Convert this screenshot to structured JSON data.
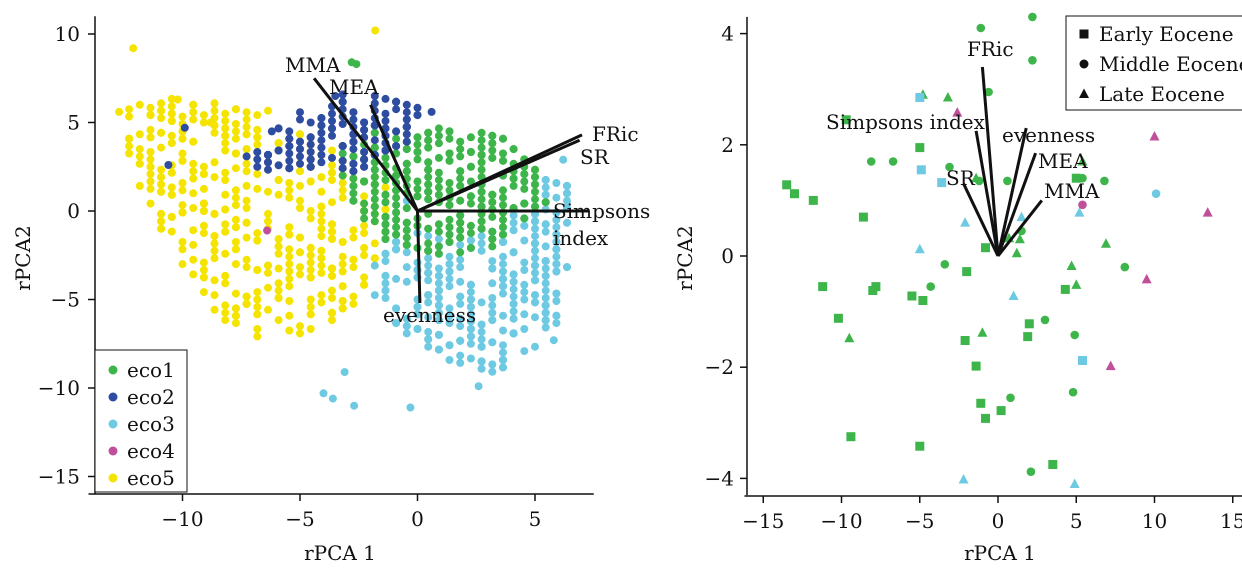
{
  "chart_data": [
    {
      "type": "scatter",
      "xlabel": "rPCA 1",
      "ylabel": "rPCA2",
      "xlim": [
        -14,
        7.5
      ],
      "ylim": [
        -16,
        11
      ],
      "xticks": [
        "−10",
        "−5",
        "0",
        "5"
      ],
      "xtick_values": [
        -10,
        -5,
        0,
        5
      ],
      "yticks": [
        "−15",
        "−10",
        "−5",
        "0",
        "5",
        "10"
      ],
      "ytick_values": [
        -15,
        -10,
        -5,
        0,
        5,
        10
      ],
      "legend_position": "bottom-left",
      "series": [
        {
          "name": "eco1",
          "color": "#3db54a",
          "marker": "circle"
        },
        {
          "name": "eco2",
          "color": "#2e4da0",
          "marker": "circle"
        },
        {
          "name": "eco3",
          "color": "#6ecae2",
          "marker": "circle"
        },
        {
          "name": "eco4",
          "color": "#c0509a",
          "marker": "circle"
        },
        {
          "name": "eco5",
          "color": "#f5e400",
          "marker": "circle"
        }
      ],
      "loadings": [
        {
          "label": "MMA",
          "x": -4.4,
          "y": 7.5
        },
        {
          "label": "MEA",
          "x": -2.0,
          "y": 6.0
        },
        {
          "label": "FRic",
          "x": 7.0,
          "y": 4.3
        },
        {
          "label": "SR",
          "x": 6.9,
          "y": 4.0
        },
        {
          "label": "Simpsons index",
          "x": 7.3,
          "y": 0.0
        },
        {
          "label": "evenness",
          "x": 0.1,
          "y": -5.2
        }
      ],
      "loading_labels": {
        "MMA": "MMA",
        "MEA": "MEA",
        "FRic": "FRic",
        "SR": "SR",
        "Simpsons index line1": "Simpsons",
        "Simpsons index line2": "index",
        "evenness": "evenness"
      }
    },
    {
      "type": "scatter",
      "xlabel": "rPCA 1",
      "ylabel": "rPCA2",
      "xlim": [
        -16.2,
        15.5
      ],
      "ylim": [
        -4.3,
        4.3
      ],
      "xticks": [
        "−15",
        "−10",
        "−5",
        "0",
        "5",
        "10",
        "15"
      ],
      "xtick_values": [
        -15,
        -10,
        -5,
        0,
        5,
        10,
        15
      ],
      "yticks": [
        "−4",
        "−2",
        "0",
        "2",
        "4"
      ],
      "ytick_values": [
        -4,
        -2,
        0,
        2,
        4
      ],
      "legend_position": "top-right",
      "legend": [
        {
          "name": "Early Eocene",
          "marker": "square"
        },
        {
          "name": "Middle Eocene",
          "marker": "circle"
        },
        {
          "name": "Late Eocene",
          "marker": "triangle"
        }
      ],
      "colors": {
        "eco1": "#3db54a",
        "eco3": "#6ecae2",
        "eco4": "#c0509a"
      },
      "points": [
        {
          "x": -13.5,
          "y": 1.28,
          "m": "square",
          "c": "eco1"
        },
        {
          "x": -13.0,
          "y": 1.12,
          "m": "square",
          "c": "eco1"
        },
        {
          "x": -11.8,
          "y": 1.0,
          "m": "square",
          "c": "eco1"
        },
        {
          "x": -9.7,
          "y": 2.45,
          "m": "square",
          "c": "eco1"
        },
        {
          "x": -8.6,
          "y": 0.7,
          "m": "square",
          "c": "eco1"
        },
        {
          "x": -11.2,
          "y": -0.55,
          "m": "square",
          "c": "eco1"
        },
        {
          "x": -10.2,
          "y": -1.12,
          "m": "square",
          "c": "eco1"
        },
        {
          "x": -8.0,
          "y": -0.62,
          "m": "square",
          "c": "eco1"
        },
        {
          "x": -7.8,
          "y": -0.55,
          "m": "square",
          "c": "eco1"
        },
        {
          "x": -5.5,
          "y": -0.72,
          "m": "square",
          "c": "eco1"
        },
        {
          "x": -4.8,
          "y": -0.8,
          "m": "square",
          "c": "eco1"
        },
        {
          "x": -9.4,
          "y": -3.25,
          "m": "square",
          "c": "eco1"
        },
        {
          "x": -5.0,
          "y": -3.42,
          "m": "square",
          "c": "eco1"
        },
        {
          "x": -5.0,
          "y": 1.95,
          "m": "square",
          "c": "eco1"
        },
        {
          "x": -2.0,
          "y": -0.28,
          "m": "square",
          "c": "eco1"
        },
        {
          "x": -2.1,
          "y": -1.52,
          "m": "square",
          "c": "eco1"
        },
        {
          "x": -1.4,
          "y": -1.98,
          "m": "square",
          "c": "eco1"
        },
        {
          "x": -1.1,
          "y": -2.65,
          "m": "square",
          "c": "eco1"
        },
        {
          "x": -0.8,
          "y": -2.92,
          "m": "square",
          "c": "eco1"
        },
        {
          "x": 0.2,
          "y": -2.78,
          "m": "square",
          "c": "eco1"
        },
        {
          "x": 2.0,
          "y": -1.22,
          "m": "square",
          "c": "eco1"
        },
        {
          "x": 1.9,
          "y": -1.45,
          "m": "square",
          "c": "eco1"
        },
        {
          "x": 4.3,
          "y": -0.6,
          "m": "square",
          "c": "eco1"
        },
        {
          "x": 3.5,
          "y": -3.75,
          "m": "square",
          "c": "eco1"
        },
        {
          "x": -0.8,
          "y": 0.15,
          "m": "square",
          "c": "eco1"
        },
        {
          "x": 5.0,
          "y": 1.4,
          "m": "square",
          "c": "eco1"
        },
        {
          "x": -1.1,
          "y": 4.1,
          "m": "circle",
          "c": "eco1"
        },
        {
          "x": 2.2,
          "y": 4.3,
          "m": "circle",
          "c": "eco1"
        },
        {
          "x": 2.2,
          "y": 3.52,
          "m": "circle",
          "c": "eco1"
        },
        {
          "x": -0.6,
          "y": 2.95,
          "m": "circle",
          "c": "eco1"
        },
        {
          "x": -8.1,
          "y": 1.7,
          "m": "circle",
          "c": "eco1"
        },
        {
          "x": -6.7,
          "y": 1.7,
          "m": "circle",
          "c": "eco1"
        },
        {
          "x": -3.1,
          "y": 1.6,
          "m": "circle",
          "c": "eco1"
        },
        {
          "x": -1.2,
          "y": 1.35,
          "m": "circle",
          "c": "eco1"
        },
        {
          "x": 0.6,
          "y": 1.35,
          "m": "circle",
          "c": "eco1"
        },
        {
          "x": 5.4,
          "y": 1.4,
          "m": "circle",
          "c": "eco1"
        },
        {
          "x": 6.8,
          "y": 1.35,
          "m": "circle",
          "c": "eco1"
        },
        {
          "x": -3.4,
          "y": -0.15,
          "m": "circle",
          "c": "eco1"
        },
        {
          "x": -4.3,
          "y": -0.55,
          "m": "circle",
          "c": "eco1"
        },
        {
          "x": 1.5,
          "y": 0.45,
          "m": "circle",
          "c": "eco1"
        },
        {
          "x": 8.1,
          "y": -0.2,
          "m": "circle",
          "c": "eco1"
        },
        {
          "x": 3.0,
          "y": -1.15,
          "m": "circle",
          "c": "eco1"
        },
        {
          "x": 4.9,
          "y": -1.42,
          "m": "circle",
          "c": "eco1"
        },
        {
          "x": 4.8,
          "y": -2.45,
          "m": "circle",
          "c": "eco1"
        },
        {
          "x": 0.8,
          "y": -2.55,
          "m": "circle",
          "c": "eco1"
        },
        {
          "x": 2.1,
          "y": -3.88,
          "m": "circle",
          "c": "eco1"
        },
        {
          "x": -4.8,
          "y": 2.9,
          "m": "triangle",
          "c": "eco1"
        },
        {
          "x": -3.2,
          "y": 2.85,
          "m": "triangle",
          "c": "eco1"
        },
        {
          "x": -1.4,
          "y": 1.4,
          "m": "triangle",
          "c": "eco1"
        },
        {
          "x": 0.7,
          "y": 0.32,
          "m": "triangle",
          "c": "eco1"
        },
        {
          "x": 1.4,
          "y": 0.3,
          "m": "triangle",
          "c": "eco1"
        },
        {
          "x": 1.2,
          "y": 0.05,
          "m": "triangle",
          "c": "eco1"
        },
        {
          "x": 4.7,
          "y": -0.18,
          "m": "triangle",
          "c": "eco1"
        },
        {
          "x": 5.0,
          "y": -0.52,
          "m": "triangle",
          "c": "eco1"
        },
        {
          "x": 6.9,
          "y": 0.22,
          "m": "triangle",
          "c": "eco1"
        },
        {
          "x": -1.0,
          "y": -1.38,
          "m": "triangle",
          "c": "eco1"
        },
        {
          "x": -9.5,
          "y": -1.48,
          "m": "triangle",
          "c": "eco1"
        },
        {
          "x": 5.4,
          "y": 1.7,
          "m": "triangle",
          "c": "eco1"
        },
        {
          "x": -5.0,
          "y": 2.85,
          "m": "square",
          "c": "eco3"
        },
        {
          "x": -4.9,
          "y": 1.55,
          "m": "square",
          "c": "eco3"
        },
        {
          "x": -3.6,
          "y": 1.32,
          "m": "square",
          "c": "eco3"
        },
        {
          "x": 5.4,
          "y": -1.88,
          "m": "square",
          "c": "eco3"
        },
        {
          "x": 10.1,
          "y": 1.12,
          "m": "circle",
          "c": "eco3"
        },
        {
          "x": 5.2,
          "y": 0.78,
          "m": "triangle",
          "c": "eco3"
        },
        {
          "x": -5.0,
          "y": 0.12,
          "m": "triangle",
          "c": "eco3"
        },
        {
          "x": -2.1,
          "y": 0.6,
          "m": "triangle",
          "c": "eco3"
        },
        {
          "x": 1.0,
          "y": -0.72,
          "m": "triangle",
          "c": "eco3"
        },
        {
          "x": 1.5,
          "y": 0.7,
          "m": "triangle",
          "c": "eco3"
        },
        {
          "x": -2.2,
          "y": -4.02,
          "m": "triangle",
          "c": "eco3"
        },
        {
          "x": 4.9,
          "y": -4.1,
          "m": "triangle",
          "c": "eco3"
        },
        {
          "x": 5.4,
          "y": 0.92,
          "m": "circle",
          "c": "eco4"
        },
        {
          "x": -2.6,
          "y": 2.58,
          "m": "triangle",
          "c": "eco4"
        },
        {
          "x": 10.0,
          "y": 2.15,
          "m": "triangle",
          "c": "eco4"
        },
        {
          "x": 13.4,
          "y": 0.78,
          "m": "triangle",
          "c": "eco4"
        },
        {
          "x": 9.5,
          "y": -0.42,
          "m": "triangle",
          "c": "eco4"
        },
        {
          "x": 7.2,
          "y": -1.98,
          "m": "triangle",
          "c": "eco4"
        }
      ],
      "loadings": [
        {
          "label": "FRic",
          "x": -1.0,
          "y": 3.4
        },
        {
          "label": "Simpsons index",
          "x": -1.4,
          "y": 2.25
        },
        {
          "label": "evenness",
          "x": 1.8,
          "y": 2.3
        },
        {
          "label": "MEA",
          "x": 2.4,
          "y": 1.85
        },
        {
          "label": "SR",
          "x": -2.2,
          "y": 1.3
        },
        {
          "label": "MMA",
          "x": 2.8,
          "y": 1.0
        }
      ],
      "loading_labels": {
        "FRic": "FRic",
        "Simpsons index": "Simpsons index",
        "evenness": "evenness",
        "MEA": "MEA",
        "SR": "SR",
        "MMA": "MMA"
      }
    }
  ]
}
